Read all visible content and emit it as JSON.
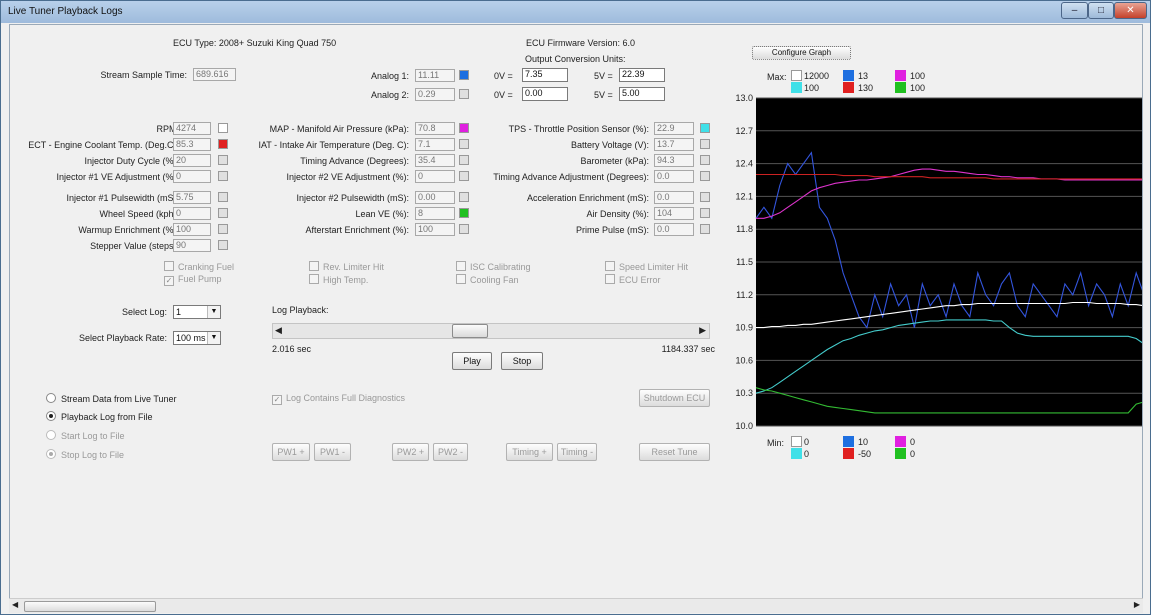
{
  "window": {
    "title": "Live Tuner Playback Logs",
    "min_glyph": "‒",
    "max_glyph": "□",
    "close_glyph": "✕"
  },
  "header": {
    "ecu_type": "ECU Type: 2008+ Suzuki King Quad 750",
    "firmware": "ECU Firmware Version: 6.0",
    "output_units": "Output Conversion Units:"
  },
  "stream": {
    "label": "Stream Sample Time:",
    "value": "689.616"
  },
  "analog": {
    "a1_label": "Analog 1:",
    "a1_value": "11.11",
    "a2_label": "Analog 2:",
    "a2_value": "0.29",
    "ov_label": "0V =",
    "fv_label": "5V =",
    "a1_0v": "7.35",
    "a1_5v": "22.39",
    "a2_0v": "0.00",
    "a2_5v": "5.00"
  },
  "fields": {
    "rpm": {
      "label": "RPM:",
      "value": "4274"
    },
    "ect": {
      "label": "ECT - Engine Coolant Temp. (Deg.C):",
      "value": "85.3"
    },
    "inj_duty": {
      "label": "Injector Duty Cycle (%):",
      "value": "20"
    },
    "inj1_ve": {
      "label": "Injector #1 VE Adjustment (%):",
      "value": "0"
    },
    "map": {
      "label": "MAP - Manifold Air Pressure (kPa):",
      "value": "70.8"
    },
    "iat": {
      "label": "IAT - Intake Air Temperature (Deg. C):",
      "value": "7.1"
    },
    "timing": {
      "label": "Timing Advance (Degrees):",
      "value": "35.4"
    },
    "inj2_ve": {
      "label": "Injector #2 VE Adjustment (%):",
      "value": "0"
    },
    "tps": {
      "label": "TPS - Throttle Position Sensor (%):",
      "value": "22.9"
    },
    "battery": {
      "label": "Battery Voltage (V):",
      "value": "13.7"
    },
    "baro": {
      "label": "Barometer (kPa):",
      "value": "94.3"
    },
    "timing_adj": {
      "label": "Timing Advance Adjustment (Degrees):",
      "value": "0.0"
    },
    "inj1_pw": {
      "label": "Injector #1 Pulsewidth (mS):",
      "value": "5.75"
    },
    "wheel": {
      "label": "Wheel Speed (kph):",
      "value": "0"
    },
    "warmup": {
      "label": "Warmup Enrichment (%):",
      "value": "100"
    },
    "stepper": {
      "label": "Stepper Value (steps):",
      "value": "90"
    },
    "inj2_pw": {
      "label": "Injector #2 Pulsewidth (mS):",
      "value": "0.00"
    },
    "lean_ve": {
      "label": "Lean VE (%):",
      "value": "8"
    },
    "afterstart": {
      "label": "Afterstart Enrichment (%):",
      "value": "100"
    },
    "accel": {
      "label": "Acceleration Enrichment (mS):",
      "value": "0.0"
    },
    "air_density": {
      "label": "Air Density (%):",
      "value": "104"
    },
    "prime": {
      "label": "Prime Pulse (mS):",
      "value": "0.0"
    }
  },
  "status_flags": {
    "cranking": "Cranking Fuel",
    "fuel_pump": "Fuel Pump",
    "rev_limiter": "Rev. Limiter Hit",
    "high_temp": "High Temp.",
    "isc": "ISC Calibrating",
    "cooling_fan": "Cooling Fan",
    "speed_limiter": "Speed Limiter Hit",
    "ecu_error": "ECU Error"
  },
  "log": {
    "select_log_label": "Select Log:",
    "select_log_value": "1",
    "rate_label": "Select Playback Rate:",
    "rate_value": "100 ms",
    "playback_label": "Log Playback:",
    "start_time": "2.016 sec",
    "end_time": "1184.337 sec",
    "position": 0.44,
    "play": "Play",
    "stop": "Stop",
    "full_diag": "Log Contains Full Diagnostics",
    "shutdown": "Shutdown ECU"
  },
  "modes": {
    "stream": "Stream Data from Live Tuner",
    "playback": "Playback Log from File",
    "start_log": "Start Log to File",
    "stop_log": "Stop Log to File"
  },
  "tune_buttons": {
    "pw1_plus": "PW1 +",
    "pw1_minus": "PW1 -",
    "pw2_plus": "PW2 +",
    "pw2_minus": "PW2 -",
    "timing_plus": "Timing +",
    "timing_minus": "Timing -",
    "reset": "Reset Tune"
  },
  "graph": {
    "configure": "Configure Graph",
    "max_label": "Max:",
    "min_label": "Min:",
    "max": {
      "white": "12000",
      "blue": "13",
      "magenta": "100",
      "cyan": "100",
      "red": "130",
      "green": "100"
    },
    "min": {
      "white": "0",
      "blue": "10",
      "magenta": "0",
      "cyan": "0",
      "red": "-50",
      "green": "0"
    },
    "colors": {
      "white": "#ffffff",
      "blue": "#1e6fe0",
      "magenta": "#e020e0",
      "cyan": "#40e0e8",
      "red": "#e02020",
      "green": "#20c020"
    }
  },
  "chart_data": {
    "type": "line",
    "ylim": [
      10.0,
      13.0
    ],
    "yticks": [
      "13.0",
      "12.7",
      "12.4",
      "12.1",
      "11.8",
      "11.5",
      "11.2",
      "10.9",
      "10.6",
      "10.3",
      "10.0"
    ],
    "grid": true,
    "series": [
      {
        "color": "#3355dd",
        "values": [
          11.9,
          12.0,
          11.9,
          12.2,
          12.4,
          12.3,
          12.4,
          12.5,
          12.0,
          11.9,
          11.7,
          11.4,
          11.2,
          11.0,
          10.9,
          11.2,
          11.0,
          11.3,
          11.1,
          11.2,
          10.9,
          11.3,
          11.1,
          11.2,
          11.0,
          11.3,
          11.1,
          11.0,
          11.4,
          11.2,
          11.1,
          11.3,
          11.4,
          11.1,
          11.0,
          11.3,
          11.2,
          11.1,
          11.0,
          11.3,
          11.2,
          11.4,
          11.1,
          11.3,
          11.2,
          11.0,
          11.3,
          11.1,
          11.4,
          11.2,
          11.3
        ]
      },
      {
        "color": "#dd33cc",
        "values": [
          11.9,
          11.9,
          11.92,
          11.95,
          12.0,
          12.05,
          12.1,
          12.15,
          12.18,
          12.2,
          12.22,
          12.23,
          12.24,
          12.25,
          12.25,
          12.26,
          12.27,
          12.28,
          12.3,
          12.32,
          12.34,
          12.35,
          12.35,
          12.34,
          12.33,
          12.33,
          12.32,
          12.31,
          12.3,
          12.3,
          12.29,
          12.28,
          12.28,
          12.27,
          12.27,
          12.27,
          12.26,
          12.26,
          12.26,
          12.25,
          12.25,
          12.25,
          12.25,
          12.25,
          12.25,
          12.25,
          12.25,
          12.25,
          12.25,
          12.25,
          12.25
        ]
      },
      {
        "color": "#cc2222",
        "values": [
          12.3,
          12.3,
          12.3,
          12.3,
          12.3,
          12.3,
          12.3,
          12.3,
          12.3,
          12.3,
          12.3,
          12.29,
          12.29,
          12.29,
          12.29,
          12.28,
          12.28,
          12.28,
          12.28,
          12.28,
          12.28,
          12.28,
          12.27,
          12.27,
          12.27,
          12.27,
          12.27,
          12.27,
          12.27,
          12.27,
          12.26,
          12.26,
          12.26,
          12.26,
          12.26,
          12.26,
          12.26,
          12.26,
          12.26,
          12.26,
          12.26,
          12.26,
          12.26,
          12.26,
          12.26,
          12.26,
          12.26,
          12.26,
          12.26,
          12.26,
          12.26
        ]
      },
      {
        "color": "#ffffff",
        "values": [
          10.9,
          10.9,
          10.91,
          10.91,
          10.92,
          10.92,
          10.93,
          10.93,
          10.94,
          10.95,
          10.96,
          10.97,
          10.98,
          10.99,
          11.0,
          11.01,
          11.02,
          11.03,
          11.04,
          11.05,
          11.06,
          11.07,
          11.08,
          11.09,
          11.1,
          11.1,
          11.11,
          11.11,
          11.12,
          11.12,
          11.12,
          11.12,
          11.12,
          11.12,
          11.12,
          11.12,
          11.12,
          11.12,
          11.12,
          11.12,
          11.13,
          11.13,
          11.13,
          11.12,
          11.12,
          11.12,
          11.12,
          11.11,
          11.11,
          11.1,
          11.1
        ]
      },
      {
        "color": "#44cccc",
        "values": [
          10.3,
          10.32,
          10.35,
          10.4,
          10.45,
          10.5,
          10.55,
          10.6,
          10.65,
          10.7,
          10.74,
          10.78,
          10.8,
          10.83,
          10.85,
          10.87,
          10.88,
          10.9,
          10.92,
          10.93,
          10.94,
          10.95,
          10.96,
          10.96,
          10.97,
          10.97,
          10.97,
          10.97,
          10.97,
          10.97,
          10.96,
          10.96,
          10.9,
          10.85,
          10.83,
          10.82,
          10.82,
          10.82,
          10.82,
          10.82,
          10.82,
          10.82,
          10.82,
          10.82,
          10.82,
          10.82,
          10.82,
          10.82,
          10.8,
          10.75,
          10.72
        ]
      },
      {
        "color": "#33bb33",
        "values": [
          10.35,
          10.33,
          10.32,
          10.3,
          10.28,
          10.26,
          10.24,
          10.22,
          10.2,
          10.18,
          10.17,
          10.16,
          10.15,
          10.14,
          10.13,
          10.12,
          10.12,
          10.12,
          10.12,
          10.12,
          10.12,
          10.12,
          10.12,
          10.12,
          10.12,
          10.12,
          10.12,
          10.12,
          10.12,
          10.12,
          10.12,
          10.12,
          10.12,
          10.12,
          10.12,
          10.12,
          10.12,
          10.12,
          10.12,
          10.12,
          10.12,
          10.12,
          10.12,
          10.12,
          10.12,
          10.12,
          10.12,
          10.12,
          10.2,
          10.22,
          10.22
        ]
      }
    ]
  }
}
